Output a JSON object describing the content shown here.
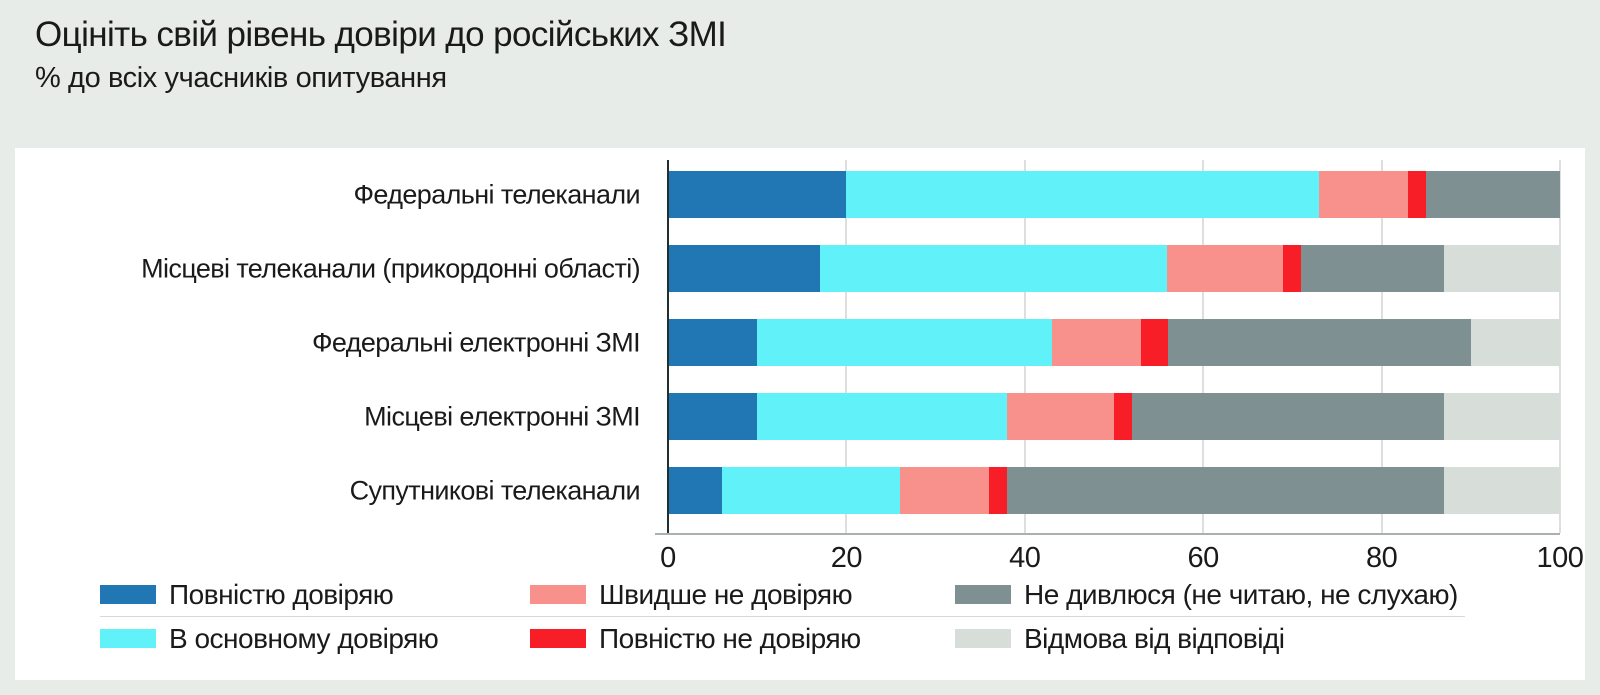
{
  "header": {
    "title": "Оцініть свій рівень довіри до російських ЗМІ",
    "subtitle": "% до всіх учасників опитування"
  },
  "chart_data": {
    "type": "bar",
    "orientation": "horizontal",
    "stacked": true,
    "title": "Оцініть свій рівень довіри до російських ЗМІ",
    "subtitle": "% до всіх учасників опитування",
    "xlabel": "",
    "ylabel": "",
    "xlim": [
      0,
      100
    ],
    "x_ticks": [
      0,
      20,
      40,
      60,
      80,
      100
    ],
    "grid": true,
    "legend_position": "bottom",
    "categories": [
      "Федеральні телеканали",
      "Місцеві телеканали (прикордонні області)",
      "Федеральні електронні ЗМІ",
      "Місцеві електронні ЗМІ",
      "Супутникові телеканали"
    ],
    "series": [
      {
        "name": "Повністю довіряю",
        "color": "#2176b4",
        "values": [
          20,
          17,
          10,
          10,
          6
        ]
      },
      {
        "name": "В основному довіряю",
        "color": "#61f1f8",
        "values": [
          53,
          39,
          33,
          28,
          20
        ]
      },
      {
        "name": "Швидше не довіряю",
        "color": "#f8908c",
        "values": [
          10,
          13,
          10,
          12,
          10
        ]
      },
      {
        "name": "Повністю не довіряю",
        "color": "#f71e28",
        "values": [
          2,
          2,
          3,
          2,
          2
        ]
      },
      {
        "name": "Не дивлюся (не читаю, не слухаю)",
        "color": "#7f9093",
        "values": [
          15,
          16,
          34,
          35,
          49
        ]
      },
      {
        "name": "Відмова від відповіді",
        "color": "#d7deda",
        "values": [
          0,
          13,
          10,
          13,
          13
        ]
      }
    ],
    "legend_rows": [
      [
        0,
        2,
        4
      ],
      [
        1,
        3,
        5
      ]
    ]
  },
  "colors": {
    "page_background": "#e8ece9",
    "panel_background": "#ffffff",
    "gridline": "#dcdfde",
    "zero_line": "#20302f",
    "axis_line": "#a9b1b0",
    "text": "#1a1a1a"
  }
}
